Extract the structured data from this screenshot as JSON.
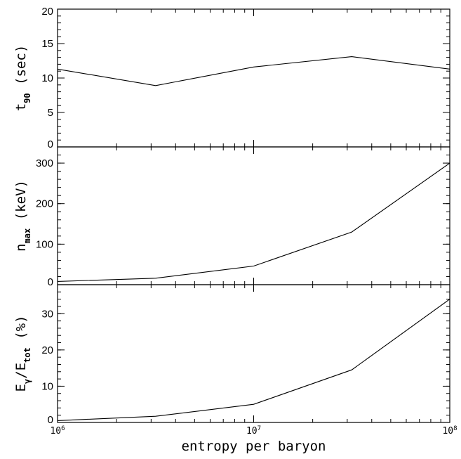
{
  "chart_data": [
    {
      "type": "line",
      "x": [
        1000000,
        3162278,
        10000000,
        31622777,
        100000000
      ],
      "series": [
        {
          "values": [
            11.3,
            8.9,
            11.6,
            13.1,
            11.3
          ]
        }
      ],
      "ylim": [
        0,
        20
      ],
      "yticks": [
        "0",
        "5",
        "10",
        "15",
        "20"
      ],
      "ylabel": {
        "main": "t",
        "sub": "90",
        "tail": "(sec)"
      },
      "x_scale": "log",
      "xlim": [
        1000000,
        100000000
      ],
      "show_x_tick_labels": false
    },
    {
      "type": "line",
      "x": [
        1000000,
        3162278,
        10000000,
        31622777,
        100000000
      ],
      "series": [
        {
          "values": [
            8,
            16,
            46,
            130,
            300
          ]
        }
      ],
      "ylim": [
        0,
        340
      ],
      "yticks": [
        "0",
        "100",
        "200",
        "300"
      ],
      "ylabel": {
        "main": "n",
        "sub": "max",
        "tail": "(keV)"
      },
      "x_scale": "log",
      "xlim": [
        1000000,
        100000000
      ],
      "show_x_tick_labels": false
    },
    {
      "type": "line",
      "x": [
        1000000,
        3162278,
        10000000,
        31622777,
        100000000
      ],
      "series": [
        {
          "values": [
            0.5,
            1.7,
            5.0,
            14.5,
            34.0
          ]
        }
      ],
      "ylim": [
        0,
        38
      ],
      "yticks": [
        "0",
        "10",
        "20",
        "30"
      ],
      "ylabel": {
        "main": "E",
        "sub": "γ",
        "mid": "/E",
        "sub2": "tot",
        "tail": "(%)"
      },
      "x_scale": "log",
      "xlim": [
        1000000,
        100000000
      ],
      "show_x_tick_labels": true,
      "xtick_labels": [
        {
          "base": "10",
          "exp": "6"
        },
        {
          "base": "10",
          "exp": "7"
        },
        {
          "base": "10",
          "exp": "8"
        }
      ],
      "xlabel": "entropy per baryon"
    }
  ]
}
